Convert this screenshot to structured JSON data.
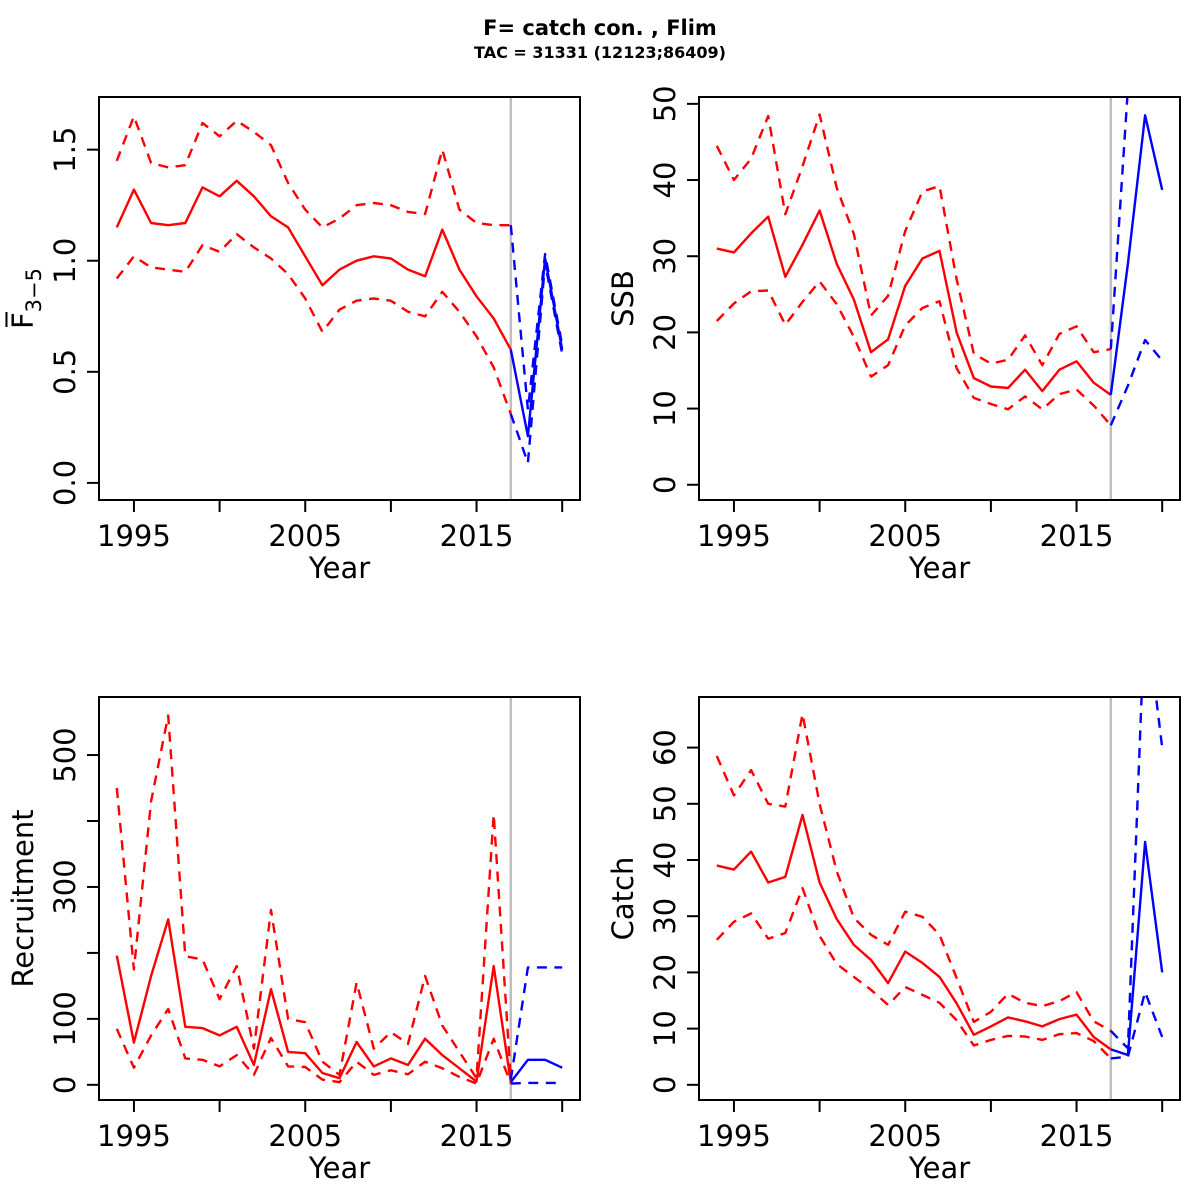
{
  "title": "F= catch con. , Flim",
  "subtitle": "TAC = 31331 (12123;86409)",
  "colors": {
    "historical": "#FF0000",
    "forecast": "#0000FF",
    "divider": "#BEBEBE",
    "axis": "#000000",
    "background": "#FFFFFF"
  },
  "divider_year": 2017,
  "chart_data": [
    {
      "id": "f",
      "type": "line",
      "ylabel": "F3-5",
      "ylabel_main": "F̅",
      "ylabel_sub": "3−5",
      "xlabel": "Year",
      "xlim": [
        1992.96,
        2021.04
      ],
      "ylim": [
        -0.077,
        1.737
      ],
      "grid": false,
      "xticks": {
        "values": [
          1995,
          2000,
          2005,
          2010,
          2015,
          2020
        ],
        "labels": [
          "1995",
          "",
          "2005",
          "",
          "2015",
          ""
        ]
      },
      "yticks": {
        "values": [
          0,
          0.5,
          1,
          1.5
        ],
        "labels": [
          "0.0",
          "0.5",
          "1.0",
          "1.5"
        ]
      },
      "divider_x": 2017,
      "series": [
        {
          "name": "historical-median",
          "role": "historical",
          "style": "solid",
          "x": [
            1994,
            1995,
            1996,
            1997,
            1998,
            1999,
            2000,
            2001,
            2002,
            2003,
            2004,
            2005,
            2006,
            2007,
            2008,
            2009,
            2010,
            2011,
            2012,
            2013,
            2014,
            2015,
            2016,
            2017
          ],
          "y": [
            1.15,
            1.32,
            1.17,
            1.16,
            1.17,
            1.33,
            1.29,
            1.36,
            1.29,
            1.2,
            1.15,
            1.02,
            0.89,
            0.96,
            1.0,
            1.02,
            1.01,
            0.96,
            0.93,
            1.14,
            0.96,
            0.84,
            0.74,
            0.6
          ]
        },
        {
          "name": "historical-upper",
          "role": "historical",
          "style": "dashed",
          "x": [
            1994,
            1995,
            1996,
            1997,
            1998,
            1999,
            2000,
            2001,
            2002,
            2003,
            2004,
            2005,
            2006,
            2007,
            2008,
            2009,
            2010,
            2011,
            2012,
            2013,
            2014,
            2015,
            2016,
            2017
          ],
          "y": [
            1.45,
            1.65,
            1.44,
            1.42,
            1.43,
            1.62,
            1.56,
            1.63,
            1.58,
            1.52,
            1.35,
            1.23,
            1.15,
            1.19,
            1.25,
            1.26,
            1.25,
            1.22,
            1.21,
            1.5,
            1.23,
            1.17,
            1.16,
            1.16
          ]
        },
        {
          "name": "historical-lower",
          "role": "historical",
          "style": "dashed",
          "x": [
            1994,
            1995,
            1996,
            1997,
            1998,
            1999,
            2000,
            2001,
            2002,
            2003,
            2004,
            2005,
            2006,
            2007,
            2008,
            2009,
            2010,
            2011,
            2012,
            2013,
            2014,
            2015,
            2016,
            2017
          ],
          "y": [
            0.92,
            1.02,
            0.97,
            0.96,
            0.95,
            1.07,
            1.04,
            1.12,
            1.06,
            1.01,
            0.94,
            0.83,
            0.68,
            0.78,
            0.82,
            0.83,
            0.82,
            0.77,
            0.75,
            0.86,
            0.77,
            0.66,
            0.52,
            0.31
          ]
        },
        {
          "name": "forecast-median",
          "role": "forecast",
          "style": "solid",
          "x": [
            2017,
            2018,
            2019,
            2020
          ],
          "y": [
            0.6,
            0.21,
            1.01,
            0.6
          ]
        },
        {
          "name": "forecast-upper",
          "role": "forecast",
          "style": "dashed",
          "x": [
            2017,
            2018,
            2019,
            2020
          ],
          "y": [
            1.16,
            0.33,
            1.03,
            0.62
          ]
        },
        {
          "name": "forecast-lower",
          "role": "forecast",
          "style": "dashed",
          "x": [
            2017,
            2018,
            2019,
            2020
          ],
          "y": [
            0.31,
            0.09,
            0.99,
            0.58
          ]
        }
      ]
    },
    {
      "id": "ssb",
      "type": "line",
      "ylabel": "SSB",
      "ylabel_main": "SSB",
      "ylabel_sub": "",
      "xlabel": "Year",
      "xlim": [
        1992.96,
        2021.04
      ],
      "ylim": [
        -2.0,
        50.9
      ],
      "grid": false,
      "xticks": {
        "values": [
          1995,
          2000,
          2005,
          2010,
          2015,
          2020
        ],
        "labels": [
          "1995",
          "",
          "2005",
          "",
          "2015",
          ""
        ]
      },
      "yticks": {
        "values": [
          0,
          10,
          20,
          30,
          40,
          50
        ],
        "labels": [
          "0",
          "10",
          "20",
          "30",
          "40",
          "50"
        ]
      },
      "divider_x": 2017,
      "series": [
        {
          "name": "historical-median",
          "role": "historical",
          "style": "solid",
          "x": [
            1994,
            1995,
            1996,
            1997,
            1998,
            1999,
            2000,
            2001,
            2002,
            2003,
            2004,
            2005,
            2006,
            2007,
            2008,
            2009,
            2010,
            2011,
            2012,
            2013,
            2014,
            2015,
            2016,
            2017
          ],
          "y": [
            31,
            30.5,
            33,
            35.2,
            27.3,
            31.5,
            36,
            29,
            24.3,
            17.4,
            19.1,
            26.1,
            29.7,
            30.7,
            20,
            14,
            12.9,
            12.7,
            15.1,
            12.3,
            15.1,
            16.2,
            13.4,
            11.8
          ]
        },
        {
          "name": "historical-upper",
          "role": "historical",
          "style": "dashed",
          "x": [
            1994,
            1995,
            1996,
            1997,
            1998,
            1999,
            2000,
            2001,
            2002,
            2003,
            2004,
            2005,
            2006,
            2007,
            2008,
            2009,
            2010,
            2011,
            2012,
            2013,
            2014,
            2015,
            2016,
            2017
          ],
          "y": [
            44.5,
            40,
            42.8,
            48.4,
            35.5,
            41.8,
            48.6,
            39,
            32.9,
            22.2,
            24.8,
            33.3,
            38.5,
            39.2,
            27,
            17.2,
            15.9,
            16.4,
            19.6,
            15.7,
            19.8,
            20.8,
            17.4,
            17.8
          ]
        },
        {
          "name": "historical-lower",
          "role": "historical",
          "style": "dashed",
          "x": [
            1994,
            1995,
            1996,
            1997,
            1998,
            1999,
            2000,
            2001,
            2002,
            2003,
            2004,
            2005,
            2006,
            2007,
            2008,
            2009,
            2010,
            2011,
            2012,
            2013,
            2014,
            2015,
            2016,
            2017
          ],
          "y": [
            21.5,
            23.8,
            25.4,
            25.5,
            21,
            24,
            26.7,
            23.7,
            19.4,
            14.2,
            15.7,
            20.9,
            23.2,
            24.1,
            15.3,
            11.4,
            10.6,
            9.9,
            11.6,
            9.9,
            11.9,
            12.5,
            10.4,
            7.8
          ]
        },
        {
          "name": "forecast-median",
          "role": "forecast",
          "style": "solid",
          "x": [
            2017,
            2018,
            2019,
            2020
          ],
          "y": [
            11.8,
            29,
            48.5,
            38.7
          ]
        },
        {
          "name": "forecast-upper",
          "role": "forecast",
          "style": "dashed",
          "x": [
            2017,
            2018,
            2019,
            2020
          ],
          "y": [
            17.8,
            52,
            95,
            80
          ]
        },
        {
          "name": "forecast-lower",
          "role": "forecast",
          "style": "dashed",
          "x": [
            2017,
            2018,
            2019,
            2020
          ],
          "y": [
            7.8,
            13,
            19,
            16.3
          ]
        }
      ]
    },
    {
      "id": "recruitment",
      "type": "line",
      "ylabel": "Recruitment",
      "ylabel_main": "Recruitment",
      "ylabel_sub": "",
      "xlabel": "Year",
      "xlim": [
        1992.96,
        2021.04
      ],
      "ylim": [
        -23,
        588
      ],
      "grid": false,
      "xticks": {
        "values": [
          1995,
          2000,
          2005,
          2010,
          2015,
          2020
        ],
        "labels": [
          "1995",
          "",
          "2005",
          "",
          "2015",
          ""
        ]
      },
      "yticks": {
        "values": [
          0,
          100,
          200,
          300,
          400,
          500
        ],
        "labels": [
          "0",
          "100",
          "",
          "300",
          "",
          "500"
        ]
      },
      "divider_x": 2017,
      "series": [
        {
          "name": "historical-median",
          "role": "historical",
          "style": "solid",
          "x": [
            1994,
            1995,
            1996,
            1997,
            1998,
            1999,
            2000,
            2001,
            2002,
            2003,
            2004,
            2005,
            2006,
            2007,
            2008,
            2009,
            2010,
            2011,
            2012,
            2013,
            2014,
            2015,
            2016,
            2017
          ],
          "y": [
            196,
            64,
            165,
            251,
            88,
            86,
            75,
            88,
            30,
            145,
            50,
            48,
            18,
            10,
            65,
            28,
            40,
            30,
            70,
            45,
            25,
            5,
            180,
            4
          ]
        },
        {
          "name": "historical-upper",
          "role": "historical",
          "style": "dashed",
          "x": [
            1994,
            1995,
            1996,
            1997,
            1998,
            1999,
            2000,
            2001,
            2002,
            2003,
            2004,
            2005,
            2006,
            2007,
            2008,
            2009,
            2010,
            2011,
            2012,
            2013,
            2014,
            2015,
            2016,
            2017
          ],
          "y": [
            450,
            175,
            430,
            560,
            195,
            190,
            130,
            180,
            55,
            265,
            100,
            95,
            35,
            15,
            155,
            55,
            80,
            62,
            165,
            90,
            50,
            10,
            410,
            8
          ]
        },
        {
          "name": "historical-lower",
          "role": "historical",
          "style": "dashed",
          "x": [
            1994,
            1995,
            1996,
            1997,
            1998,
            1999,
            2000,
            2001,
            2002,
            2003,
            2004,
            2005,
            2006,
            2007,
            2008,
            2009,
            2010,
            2011,
            2012,
            2013,
            2014,
            2015,
            2016,
            2017
          ],
          "y": [
            85,
            26,
            75,
            115,
            40,
            38,
            28,
            45,
            15,
            71,
            28,
            27,
            8,
            4,
            35,
            15,
            22,
            16,
            35,
            25,
            12,
            2,
            70,
            2
          ]
        },
        {
          "name": "forecast-median",
          "role": "forecast",
          "style": "solid",
          "x": [
            2017,
            2018,
            2019,
            2020
          ],
          "y": [
            4,
            38,
            38,
            26
          ]
        },
        {
          "name": "forecast-upper",
          "role": "forecast",
          "style": "dashed",
          "x": [
            2017,
            2018,
            2019,
            2020
          ],
          "y": [
            8,
            178,
            178,
            178
          ]
        },
        {
          "name": "forecast-lower",
          "role": "forecast",
          "style": "dashed",
          "x": [
            2017,
            2018,
            2019,
            2020
          ],
          "y": [
            2,
            3,
            3,
            3
          ]
        }
      ]
    },
    {
      "id": "catch",
      "type": "line",
      "ylabel": "Catch",
      "ylabel_main": "Catch",
      "ylabel_sub": "",
      "xlabel": "Year",
      "xlim": [
        1992.96,
        2021.04
      ],
      "ylim": [
        -2.7,
        69.0
      ],
      "grid": false,
      "xticks": {
        "values": [
          1995,
          2000,
          2005,
          2010,
          2015,
          2020
        ],
        "labels": [
          "1995",
          "",
          "2005",
          "",
          "2015",
          ""
        ]
      },
      "yticks": {
        "values": [
          0,
          10,
          20,
          30,
          40,
          50,
          60
        ],
        "labels": [
          "0",
          "10",
          "20",
          "30",
          "40",
          "50",
          "60"
        ]
      },
      "divider_x": 2017,
      "series": [
        {
          "name": "historical-median",
          "role": "historical",
          "style": "solid",
          "x": [
            1994,
            1995,
            1996,
            1997,
            1998,
            1999,
            2000,
            2001,
            2002,
            2003,
            2004,
            2005,
            2006,
            2007,
            2008,
            2009,
            2010,
            2011,
            2012,
            2013,
            2014,
            2015,
            2016,
            2017
          ],
          "y": [
            39,
            38.3,
            41.5,
            36,
            37,
            48,
            36,
            29.5,
            24.9,
            22.2,
            18.1,
            23.7,
            21.7,
            19.2,
            14.5,
            8.9,
            10.4,
            12,
            11.3,
            10.4,
            11.7,
            12.5,
            8.5,
            6.3
          ]
        },
        {
          "name": "historical-upper",
          "role": "historical",
          "style": "dashed",
          "x": [
            1994,
            1995,
            1996,
            1997,
            1998,
            1999,
            2000,
            2001,
            2002,
            2003,
            2004,
            2005,
            2006,
            2007,
            2008,
            2009,
            2010,
            2011,
            2012,
            2013,
            2014,
            2015,
            2016,
            2017
          ],
          "y": [
            58.5,
            51.5,
            56,
            50,
            49.5,
            66,
            50,
            38,
            29.7,
            26.7,
            24.9,
            30.8,
            29.9,
            26.7,
            19,
            11.2,
            13,
            16.2,
            14.6,
            14,
            14.9,
            16.5,
            11.3,
            9.6
          ]
        },
        {
          "name": "historical-lower",
          "role": "historical",
          "style": "dashed",
          "x": [
            1994,
            1995,
            1996,
            1997,
            1998,
            1999,
            2000,
            2001,
            2002,
            2003,
            2004,
            2005,
            2006,
            2007,
            2008,
            2009,
            2010,
            2011,
            2012,
            2013,
            2014,
            2015,
            2016,
            2017
          ],
          "y": [
            25.8,
            29,
            30.5,
            26,
            27,
            35,
            26.5,
            21.5,
            19.2,
            16.9,
            14.2,
            17.4,
            16,
            14.6,
            11.5,
            7,
            8,
            8.7,
            8.6,
            8,
            9,
            9.2,
            7.8,
            4.7
          ]
        },
        {
          "name": "forecast-median",
          "role": "forecast",
          "style": "solid",
          "x": [
            2017,
            2018,
            2019,
            2020
          ],
          "y": [
            6.3,
            5.3,
            43.2,
            20
          ]
        },
        {
          "name": "forecast-upper",
          "role": "forecast",
          "style": "dashed",
          "x": [
            2017,
            2018,
            2019,
            2020
          ],
          "y": [
            9.6,
            6.5,
            85,
            60
          ]
        },
        {
          "name": "forecast-lower",
          "role": "forecast",
          "style": "dashed",
          "x": [
            2017,
            2018,
            2019,
            2020
          ],
          "y": [
            4.7,
            5,
            16.5,
            8.5
          ]
        }
      ]
    }
  ]
}
